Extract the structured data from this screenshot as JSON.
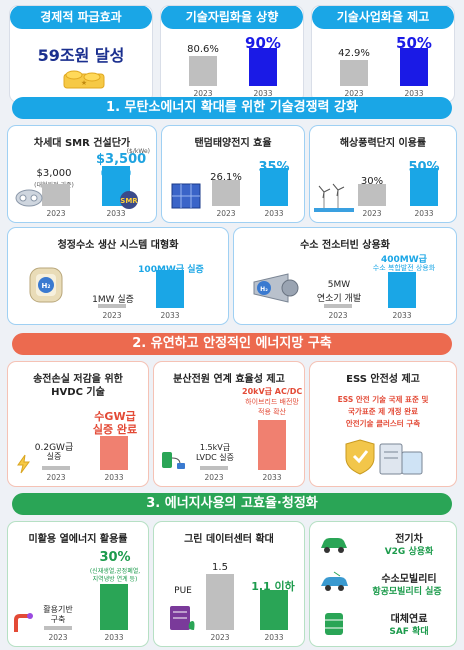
{
  "top": [
    {
      "title": "경제적 파급효과",
      "value": "59조원 달성"
    },
    {
      "title": "기술자립화율 상향",
      "v2023": "80.6%",
      "v2033": "90%",
      "y1": "2023",
      "y2": "2033"
    },
    {
      "title": "기술사업화율 제고",
      "v2023": "42.9%",
      "v2033": "50%",
      "y1": "2023",
      "y2": "2033"
    }
  ],
  "sections": [
    "1. 무탄소에너지 확대를 위한 기술경쟁력 강화",
    "2. 유연하고 안정적인 에너지망 구축",
    "3. 에너지사용의 고효율·청정화"
  ],
  "s1": {
    "smr": {
      "title": "차세대 SMR 건설단가",
      "unit": "($/kWe)",
      "v1": "$3,000",
      "v1note": "(대형원전 기준)",
      "v2": "$3,500",
      "v2note": "(SMR 기준)",
      "icon_label": "SMR",
      "y1": "2023",
      "y2": "2033"
    },
    "tandem": {
      "title": "탠덤태양전지 효율",
      "v1": "26.1%",
      "v2": "35%",
      "y1": "2023",
      "y2": "2033"
    },
    "wind": {
      "title": "해상풍력단지 이용률",
      "v1": "30%",
      "v2": "50%",
      "y1": "2023",
      "y2": "2033"
    },
    "h2": {
      "title": "청정수소 생산 시스템 대형화",
      "v1": "1MW 실증",
      "v2": "100MW급 실증",
      "icon_label": "H₂",
      "y1": "2023",
      "y2": "2033"
    },
    "turbine": {
      "title": "수소 전소터빈 상용화",
      "v1a": "5MW",
      "v1b": "연소기 개발",
      "v2a": "400MW급",
      "v2b": "수소 복합발전 상용화",
      "icon_label": "H₂",
      "y1": "2023",
      "y2": "2033"
    }
  },
  "s2": {
    "hvdc": {
      "title1": "송전손실 저감을 위한",
      "title2": "HVDC 기술",
      "v1a": "0.2GW급",
      "v1b": "실증",
      "v2a": "수GW급",
      "v2b": "실증 완료",
      "y1": "2023",
      "y2": "2033"
    },
    "dist": {
      "title": "분산전원 연계 효율성 제고",
      "v1a": "1.5kV급",
      "v1b": "LVDC 실증",
      "v2a": "20kV급 AC/DC",
      "v2b": "하이브리드 배전망",
      "v2c": "적용 확산",
      "y1": "2023",
      "y2": "2033"
    },
    "ess": {
      "title": "ESS 안전성 제고",
      "l1": "ESS 안전 기술 국제 표준 및",
      "l2": "국가표준 제 개정 완료",
      "l3": "안전기술 클러스터 구축"
    }
  },
  "s3": {
    "heat": {
      "title": "미활용 열에너지 활용률",
      "v1a": "활용기반",
      "v1b": "구축",
      "v2": "30%",
      "v2note1": "(신재생열,공정폐열,",
      "v2note2": "지역냉방 연계 등)",
      "y1": "2023",
      "y2": "2033"
    },
    "dc": {
      "title": "그린 데이터센터 확대",
      "pue": "PUE",
      "v1": "1.5",
      "v2": "1.1 이하",
      "y1": "2023",
      "y2": "2033"
    },
    "right": [
      {
        "title": "전기차",
        "value": "V2G 상용화"
      },
      {
        "title": "수소모빌리티",
        "value": "항공모빌리티 실증"
      },
      {
        "title": "대체연료",
        "value": "SAF 확대"
      }
    ]
  },
  "colors": {
    "cyan": "#1aa6e6",
    "navy": "#1a1ae6",
    "coral": "#ec6a4f",
    "green": "#2aa556",
    "grey": "#bfbfbf"
  }
}
